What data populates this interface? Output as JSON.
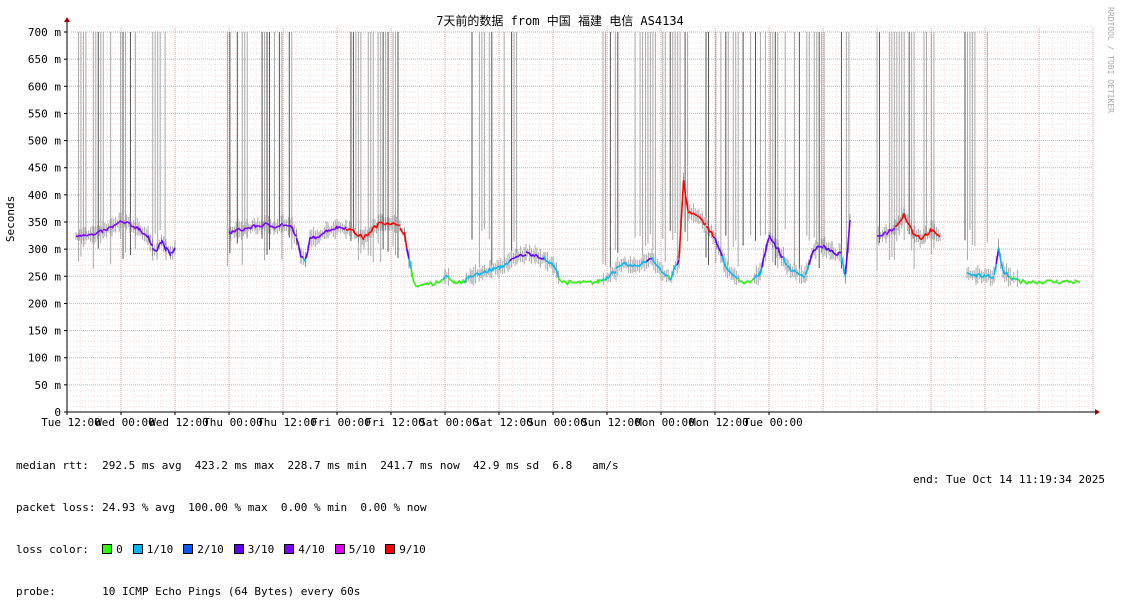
{
  "chart_data": {
    "type": "line",
    "title": "7天前的数据 from 中国 福建 电信 AS4134",
    "ylabel": "Seconds",
    "ylim": [
      0,
      700
    ],
    "y_ticks": [
      "0",
      "50 m",
      "100 m",
      "150 m",
      "200 m",
      "250 m",
      "300 m",
      "350 m",
      "400 m",
      "450 m",
      "500 m",
      "550 m",
      "600 m",
      "650 m",
      "700 m"
    ],
    "x_ticks": [
      "Tue 12:00",
      "Wed 00:00",
      "Wed 12:00",
      "Thu 00:00",
      "Thu 12:00",
      "Fri 00:00",
      "Fri 12:00",
      "Sat 00:00",
      "Sat 12:00",
      "Sun 00:00",
      "Sun 12:00",
      "Mon 00:00",
      "Mon 12:00",
      "Tue 00:00"
    ],
    "x_unit": "hours since Tue 12:00",
    "grid": true,
    "watermark": "RRDTOOL / TOBI OETIKER",
    "median_rtt_ms": [
      [
        2,
        325
      ],
      [
        4,
        328
      ],
      [
        6,
        325
      ],
      [
        8,
        333
      ],
      [
        10,
        340
      ],
      [
        12,
        350
      ],
      [
        14,
        345
      ],
      [
        16,
        338
      ],
      [
        18,
        322
      ],
      [
        19,
        302
      ],
      [
        20,
        300
      ],
      [
        21,
        315
      ],
      [
        22,
        300
      ],
      [
        23,
        290
      ],
      [
        24,
        300
      ],
      [
        30,
        null
      ],
      [
        36,
        330
      ],
      [
        38,
        335
      ],
      [
        40,
        338
      ],
      [
        42,
        342
      ],
      [
        44,
        345
      ],
      [
        46,
        342
      ],
      [
        48,
        345
      ],
      [
        50,
        340
      ],
      [
        51,
        320
      ],
      [
        52,
        285
      ],
      [
        53,
        280
      ],
      [
        54,
        318
      ],
      [
        56,
        325
      ],
      [
        58,
        335
      ],
      [
        60,
        340
      ],
      [
        62,
        340
      ],
      [
        64,
        330
      ],
      [
        66,
        320
      ],
      [
        68,
        338
      ],
      [
        70,
        350
      ],
      [
        72,
        348
      ],
      [
        74,
        340
      ],
      [
        75,
        330
      ],
      [
        76,
        280
      ],
      [
        77,
        240
      ],
      [
        78,
        232
      ],
      [
        80,
        236
      ],
      [
        82,
        238
      ],
      [
        84,
        250
      ],
      [
        86,
        240
      ],
      [
        88,
        240
      ],
      [
        90,
        250
      ],
      [
        92,
        255
      ],
      [
        94,
        262
      ],
      [
        96,
        265
      ],
      [
        98,
        275
      ],
      [
        100,
        285
      ],
      [
        102,
        292
      ],
      [
        104,
        290
      ],
      [
        106,
        283
      ],
      [
        108,
        270
      ],
      [
        110,
        240
      ],
      [
        112,
        238
      ],
      [
        114,
        238
      ],
      [
        116,
        238
      ],
      [
        118,
        240
      ],
      [
        120,
        248
      ],
      [
        122,
        262
      ],
      [
        124,
        272
      ],
      [
        126,
        268
      ],
      [
        128,
        275
      ],
      [
        130,
        285
      ],
      [
        132,
        260
      ],
      [
        134,
        245
      ],
      [
        136,
        280
      ],
      [
        137,
        425
      ],
      [
        138,
        370
      ],
      [
        140,
        360
      ],
      [
        142,
        345
      ],
      [
        144,
        320
      ],
      [
        146,
        275
      ],
      [
        148,
        250
      ],
      [
        150,
        238
      ],
      [
        152,
        240
      ],
      [
        154,
        255
      ],
      [
        156,
        325
      ],
      [
        158,
        300
      ],
      [
        160,
        270
      ],
      [
        162,
        255
      ],
      [
        164,
        252
      ],
      [
        166,
        300
      ],
      [
        168,
        305
      ],
      [
        170,
        295
      ],
      [
        172,
        290
      ],
      [
        173,
        250
      ],
      [
        174,
        350
      ],
      [
        178,
        null
      ],
      [
        180,
        325
      ],
      [
        182,
        330
      ],
      [
        184,
        340
      ],
      [
        186,
        365
      ],
      [
        188,
        330
      ],
      [
        190,
        320
      ],
      [
        192,
        335
      ],
      [
        194,
        320
      ],
      [
        199,
        null
      ],
      [
        200,
        258
      ],
      [
        202,
        250
      ],
      [
        204,
        252
      ],
      [
        206,
        250
      ],
      [
        207,
        300
      ],
      [
        208,
        260
      ],
      [
        210,
        245
      ],
      [
        212,
        240
      ],
      [
        216,
        240
      ],
      [
        220,
        240
      ],
      [
        224,
        240
      ],
      [
        225,
        240
      ]
    ],
    "loss_percent_avg": 24.93
  },
  "stats": {
    "median_rtt": "median rtt:  292.5 ms avg  423.2 ms max  228.7 ms min  241.7 ms now  42.9 ms sd  6.8   am/s",
    "packet_loss": "packet loss: 24.93 % avg  100.00 % max  0.00 % min  0.00 % now",
    "loss_color_label": "loss color:",
    "probe": "probe:       10 ICMP Echo Pings (64 Bytes) every 60s",
    "end": "end: Tue Oct 14 11:19:34 2025"
  },
  "loss_colors": [
    {
      "label": "0",
      "color": "#26ff00"
    },
    {
      "label": "1/10",
      "color": "#00b8ff"
    },
    {
      "label": "2/10",
      "color": "#0059ff"
    },
    {
      "label": "3/10",
      "color": "#5e00ff"
    },
    {
      "label": "4/10",
      "color": "#7e00ff"
    },
    {
      "label": "5/10",
      "color": "#dd00ff"
    },
    {
      "label": "9/10",
      "color": "#ff0000"
    }
  ]
}
